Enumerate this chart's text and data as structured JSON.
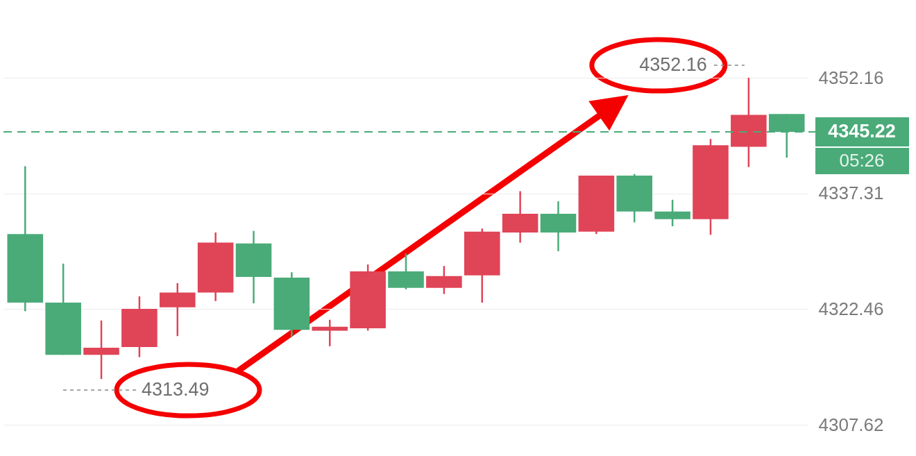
{
  "chart_data": {
    "type": "candlestick",
    "categories": [
      null,
      null,
      null,
      null,
      null,
      null,
      null,
      null,
      null,
      null,
      null,
      null,
      null,
      null,
      null,
      null,
      null,
      null,
      null,
      null,
      null
    ],
    "ohlc": [
      [
        4332.1,
        4340.8,
        4322.2,
        4323.3
      ],
      [
        4323.3,
        4328.3,
        4316.6,
        4316.6
      ],
      [
        4316.6,
        4321.0,
        4313.49,
        4317.5
      ],
      [
        4317.6,
        4324.1,
        4316.3,
        4322.5
      ],
      [
        4322.7,
        4325.8,
        4319.0,
        4324.6
      ],
      [
        4324.6,
        4332.3,
        4323.5,
        4331.0
      ],
      [
        4330.9,
        4332.5,
        4323.2,
        4326.6
      ],
      [
        4326.5,
        4327.2,
        4318.9,
        4319.8
      ],
      [
        4319.7,
        4321.1,
        4317.7,
        4320.2
      ],
      [
        4320.0,
        4328.2,
        4319.7,
        4327.3
      ],
      [
        4327.3,
        4329.6,
        4325.0,
        4325.2
      ],
      [
        4325.2,
        4328.0,
        4324.4,
        4326.7
      ],
      [
        4326.8,
        4332.8,
        4323.3,
        4332.4
      ],
      [
        4332.3,
        4337.6,
        4331.0,
        4334.7
      ],
      [
        4334.7,
        4336.3,
        4329.9,
        4332.3
      ],
      [
        4332.4,
        4339.6,
        4332.1,
        4339.6
      ],
      [
        4339.6,
        4339.8,
        4333.6,
        4335.0
      ],
      [
        4335.0,
        4336.5,
        4333.1,
        4334.0
      ],
      [
        4334.0,
        4344.3,
        4332.0,
        4343.5
      ],
      [
        4343.3,
        4352.16,
        4340.7,
        4347.4
      ],
      [
        4347.5,
        4347.5,
        4341.9,
        4345.22
      ]
    ],
    "colors": [
      "#4aab79",
      "#4aab79",
      "#e04457",
      "#e04457",
      "#e04457",
      "#e04457",
      "#4aab79",
      "#4aab79",
      "#e04457",
      "#e04457",
      "#4aab79",
      "#e04457",
      "#e04457",
      "#e04457",
      "#4aab79",
      "#e04457",
      "#4aab79",
      "#4aab79",
      "#e04457",
      "#e04457",
      "#4aab79"
    ],
    "ylim": [
      4307.62,
      4352.16
    ],
    "yticks": [
      4307.62,
      4322.46,
      4337.31,
      4352.16
    ],
    "grid": "y",
    "ref_lines": [
      {
        "axis": "y",
        "value": 4345.22,
        "label": "4345.22",
        "color": "#4aab79",
        "line_style": "dashed"
      }
    ],
    "annotations": [
      "4352.16",
      "4313.49",
      "05:26"
    ]
  }
}
